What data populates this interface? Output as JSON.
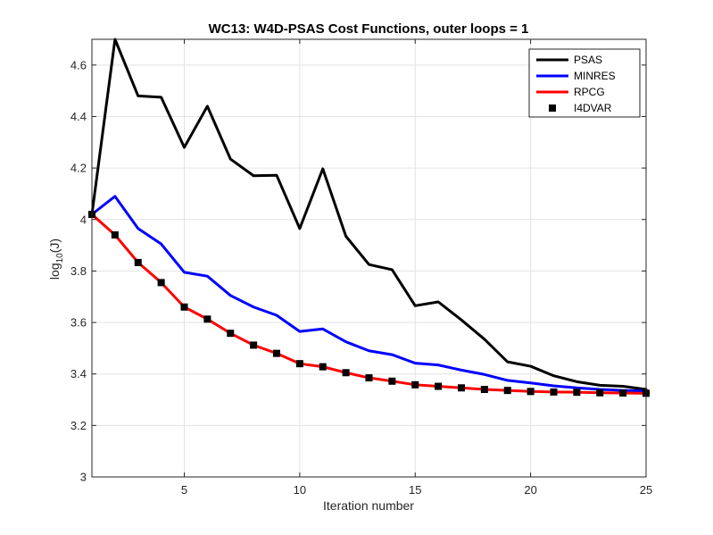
{
  "chart_data": {
    "type": "line",
    "title": "WC13: W4D-PSAS Cost Functions, outer loops = 1",
    "xlabel": "Iteration number",
    "ylabel": {
      "base": "log",
      "subscript": "10",
      "rest": "(J)"
    },
    "xlim": [
      1,
      25
    ],
    "ylim": [
      3,
      4.7
    ],
    "xticks": [
      5,
      10,
      15,
      20,
      25
    ],
    "yticks": [
      3,
      3.2,
      3.4,
      3.6,
      3.8,
      4,
      4.2,
      4.4,
      4.6
    ],
    "grid": true,
    "legend_position": "top-right",
    "x": [
      1,
      2,
      3,
      4,
      5,
      6,
      7,
      8,
      9,
      10,
      11,
      12,
      13,
      14,
      15,
      16,
      17,
      18,
      19,
      20,
      21,
      22,
      23,
      24,
      25
    ],
    "series": [
      {
        "name": "PSAS",
        "color": "#000000",
        "style": "line",
        "values": [
          4.02,
          4.7,
          4.48,
          4.475,
          4.28,
          4.44,
          4.235,
          4.17,
          4.172,
          3.965,
          4.197,
          3.935,
          3.825,
          3.805,
          3.665,
          3.68,
          3.61,
          3.535,
          3.447,
          3.43,
          3.393,
          3.37,
          3.356,
          3.352,
          3.34
        ]
      },
      {
        "name": "MINRES",
        "color": "#0000ff",
        "style": "line",
        "values": [
          4.02,
          4.09,
          3.965,
          3.905,
          3.795,
          3.78,
          3.705,
          3.66,
          3.628,
          3.565,
          3.575,
          3.525,
          3.49,
          3.475,
          3.442,
          3.435,
          3.415,
          3.398,
          3.375,
          3.365,
          3.354,
          3.346,
          3.34,
          3.336,
          3.334
        ]
      },
      {
        "name": "RPCG",
        "color": "#ff0000",
        "style": "line",
        "values": [
          4.02,
          3.94,
          3.833,
          3.755,
          3.66,
          3.613,
          3.558,
          3.512,
          3.48,
          3.44,
          3.428,
          3.405,
          3.385,
          3.372,
          3.358,
          3.352,
          3.346,
          3.34,
          3.336,
          3.332,
          3.33,
          3.329,
          3.327,
          3.326,
          3.325
        ]
      },
      {
        "name": "I4DVAR",
        "color": "#000000",
        "style": "marker",
        "values": [
          4.02,
          3.94,
          3.833,
          3.755,
          3.66,
          3.613,
          3.558,
          3.512,
          3.48,
          3.44,
          3.428,
          3.405,
          3.385,
          3.372,
          3.358,
          3.352,
          3.346,
          3.34,
          3.336,
          3.332,
          3.33,
          3.329,
          3.327,
          3.326,
          3.325
        ]
      }
    ]
  }
}
